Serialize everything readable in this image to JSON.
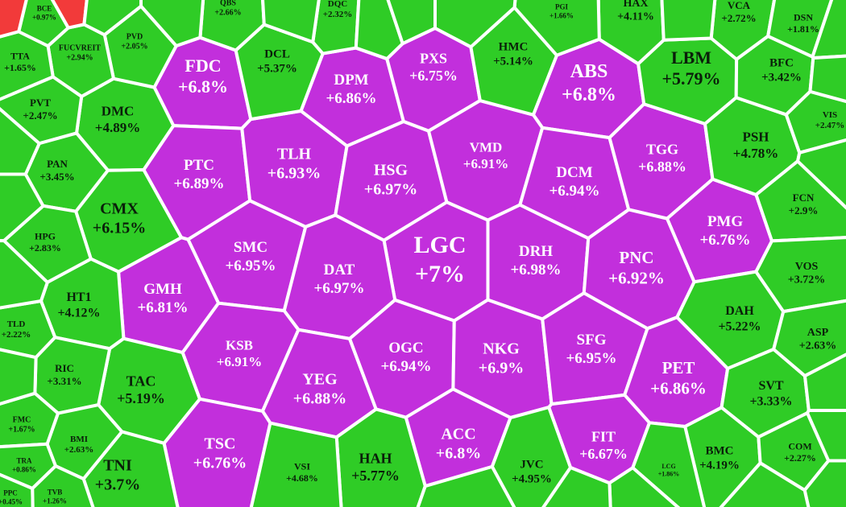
{
  "colors": {
    "ceiling": "#c22fdc",
    "up": "#2fcc26",
    "down": "#f23a3a"
  },
  "cells": [
    {
      "ticker": "FDC",
      "change": "+6.8%",
      "group": "ceiling"
    },
    {
      "ticker": "DPM",
      "change": "+6.86%",
      "group": "ceiling"
    },
    {
      "ticker": "PXS",
      "change": "+6.75%",
      "group": "ceiling"
    },
    {
      "ticker": "ABS",
      "change": "+6.8%",
      "group": "ceiling"
    },
    {
      "ticker": "PTC",
      "change": "+6.89%",
      "group": "ceiling"
    },
    {
      "ticker": "TLH",
      "change": "+6.93%",
      "group": "ceiling"
    },
    {
      "ticker": "HSG",
      "change": "+6.97%",
      "group": "ceiling"
    },
    {
      "ticker": "VMD",
      "change": "+6.91%",
      "group": "ceiling"
    },
    {
      "ticker": "DCM",
      "change": "+6.94%",
      "group": "ceiling"
    },
    {
      "ticker": "TGG",
      "change": "+6.88%",
      "group": "ceiling"
    },
    {
      "ticker": "PMG",
      "change": "+6.76%",
      "group": "ceiling"
    },
    {
      "ticker": "LGC",
      "change": "+7%",
      "group": "ceiling"
    },
    {
      "ticker": "DRH",
      "change": "+6.98%",
      "group": "ceiling"
    },
    {
      "ticker": "PNC",
      "change": "+6.92%",
      "group": "ceiling"
    },
    {
      "ticker": "SMC",
      "change": "+6.95%",
      "group": "ceiling"
    },
    {
      "ticker": "DAT",
      "change": "+6.97%",
      "group": "ceiling"
    },
    {
      "ticker": "GMH",
      "change": "+6.81%",
      "group": "ceiling"
    },
    {
      "ticker": "KSB",
      "change": "+6.91%",
      "group": "ceiling"
    },
    {
      "ticker": "YEG",
      "change": "+6.88%",
      "group": "ceiling"
    },
    {
      "ticker": "OGC",
      "change": "+6.94%",
      "group": "ceiling"
    },
    {
      "ticker": "NKG",
      "change": "+6.9%",
      "group": "ceiling"
    },
    {
      "ticker": "SFG",
      "change": "+6.95%",
      "group": "ceiling"
    },
    {
      "ticker": "PET",
      "change": "+6.86%",
      "group": "ceiling"
    },
    {
      "ticker": "TSC",
      "change": "+6.76%",
      "group": "ceiling"
    },
    {
      "ticker": "ACC",
      "change": "+6.8%",
      "group": "ceiling"
    },
    {
      "ticker": "FIT",
      "change": "+6.67%",
      "group": "ceiling"
    },
    {
      "ticker": "LBM",
      "change": "+5.79%",
      "group": "up"
    },
    {
      "ticker": "HMC",
      "change": "+5.14%",
      "group": "up"
    },
    {
      "ticker": "DCL",
      "change": "+5.37%",
      "group": "up"
    },
    {
      "ticker": "DMC",
      "change": "+4.89%",
      "group": "up"
    },
    {
      "ticker": "CMX",
      "change": "+6.15%",
      "group": "up"
    },
    {
      "ticker": "HT1",
      "change": "+4.12%",
      "group": "up"
    },
    {
      "ticker": "TAC",
      "change": "+5.19%",
      "group": "up"
    },
    {
      "ticker": "TNI",
      "change": "+3.7%",
      "group": "up"
    },
    {
      "ticker": "HAH",
      "change": "+5.77%",
      "group": "up"
    },
    {
      "ticker": "VSI",
      "change": "+4.68%",
      "group": "up"
    },
    {
      "ticker": "JVC",
      "change": "+4.95%",
      "group": "up"
    },
    {
      "ticker": "PSH",
      "change": "+4.78%",
      "group": "up"
    },
    {
      "ticker": "DAH",
      "change": "+5.22%",
      "group": "up"
    },
    {
      "ticker": "SVT",
      "change": "+3.33%",
      "group": "up"
    },
    {
      "ticker": "BMC",
      "change": "+4.19%",
      "group": "up"
    },
    {
      "ticker": "BFC",
      "change": "+3.42%",
      "group": "up"
    },
    {
      "ticker": "VCA",
      "change": "+2.72%",
      "group": "up"
    },
    {
      "ticker": "HAX",
      "change": "+4.11%",
      "group": "up"
    },
    {
      "ticker": "DSN",
      "change": "+1.81%",
      "group": "up"
    },
    {
      "ticker": "VIS",
      "change": "+2.47%",
      "group": "up"
    },
    {
      "ticker": "FCN",
      "change": "+2.9%",
      "group": "up"
    },
    {
      "ticker": "VOS",
      "change": "+3.72%",
      "group": "up"
    },
    {
      "ticker": "ASP",
      "change": "+2.63%",
      "group": "up"
    },
    {
      "ticker": "COM",
      "change": "+2.27%",
      "group": "up"
    },
    {
      "ticker": "PVD",
      "change": "+2.05%",
      "group": "up"
    },
    {
      "ticker": "FUCVREIT",
      "change": "+2.94%",
      "group": "up"
    },
    {
      "ticker": "TTA",
      "change": "+1.65%",
      "group": "up"
    },
    {
      "ticker": "PVT",
      "change": "+2.47%",
      "group": "up"
    },
    {
      "ticker": "PAN",
      "change": "+3.45%",
      "group": "up"
    },
    {
      "ticker": "HPG",
      "change": "+2.83%",
      "group": "up"
    },
    {
      "ticker": "TLD",
      "change": "+2.22%",
      "group": "up"
    },
    {
      "ticker": "RIC",
      "change": "+3.31%",
      "group": "up"
    },
    {
      "ticker": "BMI",
      "change": "+2.63%",
      "group": "up"
    },
    {
      "ticker": "FMC",
      "change": "+1.67%",
      "group": "up"
    },
    {
      "ticker": "TRA",
      "change": "+0.86%",
      "group": "up"
    },
    {
      "ticker": "PPC",
      "change": "+0.45%",
      "group": "up"
    },
    {
      "ticker": "TVB",
      "change": "+1.26%",
      "group": "up"
    },
    {
      "ticker": "LCG",
      "change": "+1.86%",
      "group": "up"
    },
    {
      "ticker": "PGI",
      "change": "+1.66%",
      "group": "up"
    },
    {
      "ticker": "DQC",
      "change": "+2.32%",
      "group": "up"
    },
    {
      "ticker": "QBS",
      "change": "+2.66%",
      "group": "up"
    },
    {
      "ticker": "BCE",
      "change": "+0.97%",
      "group": "up"
    }
  ]
}
